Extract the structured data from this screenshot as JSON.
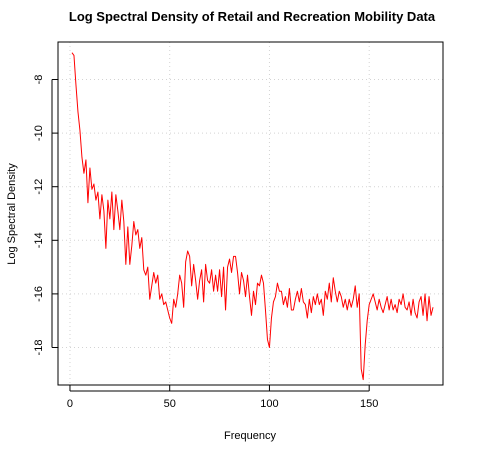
{
  "chart_data": {
    "type": "line",
    "title": "Log Spectral Density of Retail and Recreation Mobility Data",
    "xlabel": "Frequency",
    "ylabel": "Log Spectral Density",
    "xlim": [
      -6,
      187
    ],
    "ylim": [
      -19.4,
      -6.6
    ],
    "xticks": [
      0,
      50,
      100,
      150
    ],
    "yticks": [
      -8,
      -10,
      -12,
      -14,
      -16,
      -18
    ],
    "grid": true,
    "line_color": "#ff0000",
    "series": [
      {
        "x": [
          1,
          2,
          3,
          4,
          5,
          6,
          7,
          8,
          9,
          10,
          11,
          12,
          13,
          14,
          15,
          16,
          17,
          18,
          19,
          20,
          21,
          22,
          23,
          24,
          25,
          26,
          27,
          28,
          29,
          30,
          31,
          32,
          33,
          34,
          35,
          36,
          37,
          38,
          39,
          40,
          41,
          42,
          43,
          44,
          45,
          46,
          47,
          48,
          49,
          50,
          51,
          52,
          53,
          54,
          55,
          56,
          57,
          58,
          59,
          60,
          61,
          62,
          63,
          64,
          65,
          66,
          67,
          68,
          69,
          70,
          71,
          72,
          73,
          74,
          75,
          76,
          77,
          78,
          79,
          80,
          81,
          82,
          83,
          84,
          85,
          86,
          87,
          88,
          89,
          90,
          91,
          92,
          93,
          94,
          95,
          96,
          97,
          98,
          99,
          100,
          101,
          102,
          103,
          104,
          105,
          106,
          107,
          108,
          109,
          110,
          111,
          112,
          113,
          114,
          115,
          116,
          117,
          118,
          119,
          120,
          121,
          122,
          123,
          124,
          125,
          126,
          127,
          128,
          129,
          130,
          131,
          132,
          133,
          134,
          135,
          136,
          137,
          138,
          139,
          140,
          141,
          142,
          143,
          144,
          145,
          146,
          147,
          148,
          149,
          150,
          151,
          152,
          153,
          154,
          155,
          156,
          157,
          158,
          159,
          160,
          161,
          162,
          163,
          164,
          165,
          166,
          167,
          168,
          169,
          170,
          171,
          172,
          173,
          174,
          175,
          176,
          177,
          178,
          179,
          180,
          181,
          182
        ],
        "values": [
          -7.0,
          -7.1,
          -8.2,
          -9.2,
          -9.9,
          -10.9,
          -11.5,
          -11.0,
          -12.6,
          -11.3,
          -12.1,
          -11.9,
          -12.5,
          -12.2,
          -13.2,
          -12.3,
          -12.9,
          -14.3,
          -12.5,
          -13.2,
          -12.2,
          -13.6,
          -12.3,
          -12.9,
          -13.6,
          -12.5,
          -13.3,
          -14.9,
          -13.5,
          -14.9,
          -14.2,
          -13.3,
          -13.8,
          -13.6,
          -14.3,
          -13.9,
          -15.1,
          -15.3,
          -15.0,
          -16.2,
          -15.7,
          -15.2,
          -15.6,
          -15.3,
          -16.2,
          -16.0,
          -16.4,
          -16.3,
          -16.6,
          -16.9,
          -17.1,
          -16.2,
          -16.5,
          -16.0,
          -15.3,
          -15.6,
          -16.5,
          -14.8,
          -14.4,
          -14.6,
          -15.7,
          -14.9,
          -15.5,
          -16.2,
          -15.5,
          -15.1,
          -16.3,
          -14.9,
          -15.5,
          -15.6,
          -15.1,
          -15.9,
          -15.3,
          -15.9,
          -15.1,
          -16.1,
          -15.0,
          -16.6,
          -15.0,
          -14.7,
          -15.2,
          -14.6,
          -14.6,
          -15.2,
          -16.0,
          -15.2,
          -15.5,
          -16.1,
          -15.3,
          -16.1,
          -16.8,
          -15.9,
          -16.4,
          -15.6,
          -15.7,
          -15.3,
          -15.6,
          -16.6,
          -17.7,
          -18.0,
          -16.9,
          -16.3,
          -16.1,
          -15.6,
          -15.9,
          -15.9,
          -16.4,
          -16.1,
          -16.5,
          -15.8,
          -16.6,
          -16.6,
          -16.2,
          -15.9,
          -16.3,
          -15.8,
          -16.3,
          -16.4,
          -16.9,
          -16.2,
          -16.7,
          -16.1,
          -16.4,
          -16.0,
          -16.4,
          -16.2,
          -16.8,
          -15.9,
          -16.2,
          -15.6,
          -16.3,
          -15.4,
          -15.9,
          -16.3,
          -15.9,
          -16.1,
          -16.5,
          -16.2,
          -16.6,
          -16.2,
          -16.5,
          -16.2,
          -15.7,
          -16.5,
          -16.0,
          -18.8,
          -19.2,
          -17.9,
          -17.0,
          -16.4,
          -16.2,
          -16.0,
          -16.3,
          -16.6,
          -16.2,
          -16.5,
          -16.7,
          -16.4,
          -16.1,
          -16.6,
          -16.2,
          -16.6,
          -16.4,
          -16.7,
          -16.2,
          -16.4,
          -16.0,
          -16.5,
          -16.6,
          -16.3,
          -16.8,
          -16.2,
          -16.7,
          -16.9,
          -16.3,
          -16.1,
          -16.8,
          -16.0,
          -17.0,
          -16.1,
          -16.8,
          -16.5
        ]
      }
    ]
  }
}
